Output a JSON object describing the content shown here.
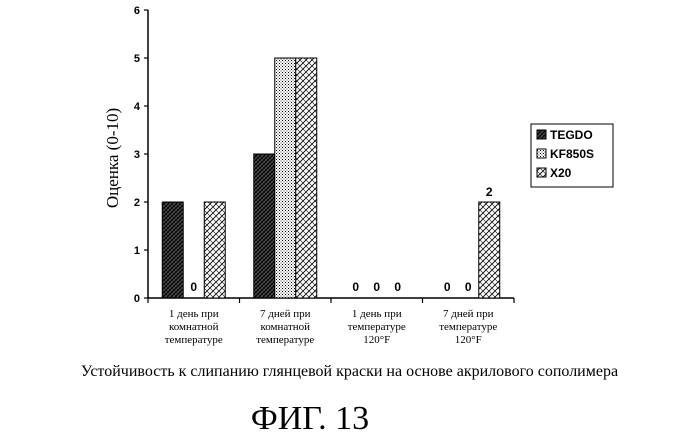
{
  "chart_data": {
    "type": "bar",
    "ylabel": "Оценка (0-10)",
    "xlabel": "",
    "ylim": [
      0,
      6
    ],
    "yticks": [
      "0",
      "1",
      "2",
      "3",
      "4",
      "5",
      "6"
    ],
    "categories": [
      [
        "1 день при",
        "комнатной",
        "температуре"
      ],
      [
        "7 дней при",
        "комнатной",
        "температуре"
      ],
      [
        "1 день при",
        "температуре",
        "120°F"
      ],
      [
        "7 дней при",
        "температуре",
        "120°F"
      ]
    ],
    "series": [
      {
        "name": "TEGDO",
        "values": [
          2,
          3,
          0,
          0
        ]
      },
      {
        "name": "KF850S",
        "values": [
          0,
          5,
          0,
          0
        ]
      },
      {
        "name": "X20",
        "values": [
          2,
          5,
          0,
          2
        ]
      }
    ],
    "data_labels": [
      {
        "category": 0,
        "series": 1,
        "text": "0"
      },
      {
        "category": 2,
        "series": 0,
        "text": "0"
      },
      {
        "category": 2,
        "series": 1,
        "text": "0"
      },
      {
        "category": 2,
        "series": 2,
        "text": "0"
      },
      {
        "category": 3,
        "series": 0,
        "text": "0"
      },
      {
        "category": 3,
        "series": 1,
        "text": "0"
      },
      {
        "category": 3,
        "series": 2,
        "text": "2"
      }
    ],
    "legend_position": "right",
    "grid": false
  },
  "caption": "Устойчивость к слипанию глянцевой краски на основе акрилового сополимера",
  "figure_label": "ФИГ. 13"
}
